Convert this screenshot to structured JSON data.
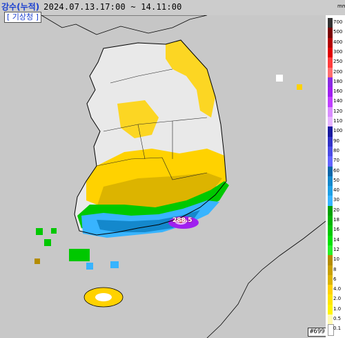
{
  "header": {
    "title_label": "강수(누적)",
    "time_range": "2024.07.13.17:00 ~ 14.11:00",
    "agency": "[ 기상청 ]"
  },
  "legend": {
    "unit": "mm",
    "ticks": [
      "700",
      "500",
      "400",
      "300",
      "250",
      "200",
      "180",
      "160",
      "140",
      "120",
      "110",
      "100",
      "90",
      "80",
      "70",
      "60",
      "50",
      "40",
      "30",
      "20",
      "18",
      "16",
      "14",
      "12",
      "10",
      "8",
      "6",
      "4.0",
      "2.0",
      "1.0",
      "0.5",
      "0.1"
    ],
    "colors": [
      "#333333",
      "#7a0000",
      "#b30000",
      "#e00000",
      "#ff3c3c",
      "#ff6e6e",
      "#8a2be2",
      "#a020f0",
      "#c040ff",
      "#d98cff",
      "#e6b3ff",
      "#1a1aa0",
      "#3232c8",
      "#4b4be6",
      "#6464ff",
      "#0a66aa",
      "#1488cc",
      "#1ea0e6",
      "#38b4ff",
      "#00a000",
      "#00b400",
      "#00c800",
      "#00e100",
      "#28f028",
      "#b48c00",
      "#c8a000",
      "#dcb400",
      "#ffd200",
      "#ffe600",
      "#fff500",
      "#fffab4",
      "#ffffff"
    ]
  },
  "map": {
    "peak_label": "288.5",
    "map_code": "#699"
  }
}
